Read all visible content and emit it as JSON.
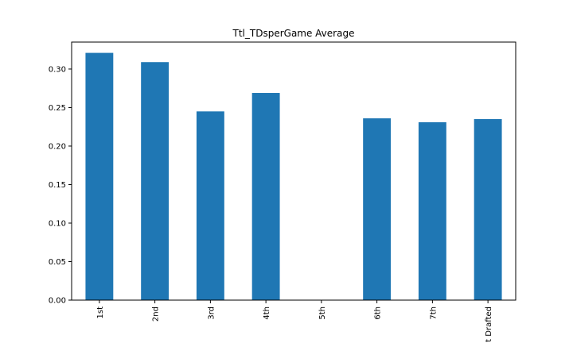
{
  "chart_data": {
    "type": "bar",
    "title": "Ttl_TDsperGame Average",
    "categories": [
      "1st",
      "2nd",
      "3rd",
      "4th",
      "5th",
      "6th",
      "7th",
      "Not Drafted"
    ],
    "visible_category_labels": [
      "1st",
      "2nd",
      "3rd",
      "4th",
      "5th",
      "6th",
      "7th",
      "t Drafted"
    ],
    "values": [
      0.321,
      0.309,
      0.245,
      0.269,
      0.0,
      0.236,
      0.231,
      0.235
    ],
    "ylim": [
      0,
      0.335
    ],
    "yticks": [
      0.0,
      0.05,
      0.1,
      0.15,
      0.2,
      0.25,
      0.3
    ],
    "ytick_labels": [
      "0.00",
      "0.05",
      "0.10",
      "0.15",
      "0.20",
      "0.25",
      "0.30"
    ],
    "xlabel": "",
    "ylabel": "",
    "bar_color": "#1f77b4",
    "grid": false,
    "legend": "none"
  }
}
